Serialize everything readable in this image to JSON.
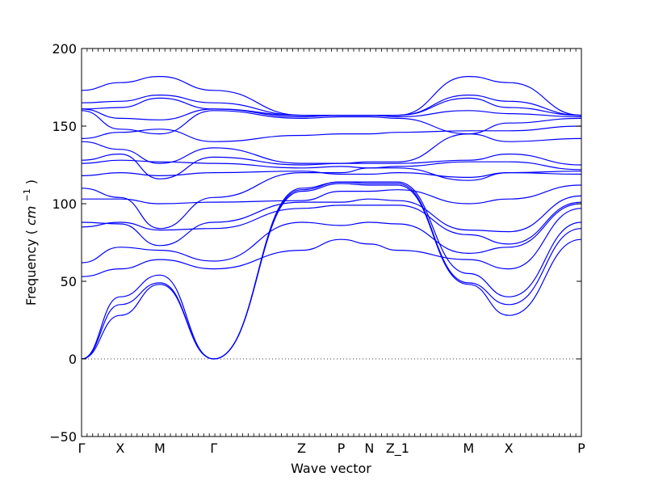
{
  "chart_data": {
    "type": "line",
    "xlabel": "Wave vector",
    "ylabel": "Frequency",
    "ylabel_unit": "cm",
    "ylabel_unit_exponent": "−1",
    "ylim": [
      -50,
      200
    ],
    "yticks": [
      -50,
      0,
      50,
      100,
      150,
      200
    ],
    "xlim": [
      0,
      1
    ],
    "x_ticks": [
      {
        "label": "Γ",
        "x": 0.0
      },
      {
        "label": "X",
        "x": 0.0774
      },
      {
        "label": "M",
        "x": 0.1565
      },
      {
        "label": "Γ",
        "x": 0.2645
      },
      {
        "label": "Z",
        "x": 0.4403
      },
      {
        "label": "P",
        "x": 0.5194
      },
      {
        "label": "N",
        "x": 0.5758
      },
      {
        "label": "Z_1",
        "x": 0.6323
      },
      {
        "label": "M",
        "x": 0.7742
      },
      {
        "label": "X",
        "x": 0.8548
      },
      {
        "label": "P",
        "x": 1.0
      }
    ],
    "zero_line": true,
    "grid": false,
    "series_color": "#0000ff",
    "segment_x": [
      0.0,
      0.0774,
      0.1565,
      0.2645,
      0.4403,
      0.5194,
      0.5758,
      0.6323,
      0.7742,
      0.8548,
      1.0
    ],
    "series": [
      {
        "values": [
          0,
          28,
          48,
          0,
          108,
          113,
          112,
          112,
          48,
          28,
          77
        ]
      },
      {
        "values": [
          0,
          35,
          49,
          0,
          109,
          114,
          113,
          113,
          49,
          35,
          84
        ]
      },
      {
        "values": [
          0,
          40,
          54,
          0,
          110,
          114,
          114,
          114,
          55,
          40,
          88
        ]
      },
      {
        "values": [
          53,
          58,
          64,
          58,
          70,
          77,
          74,
          70,
          64,
          58,
          97
        ]
      },
      {
        "values": [
          62,
          72,
          70,
          63,
          88,
          86,
          88,
          87,
          68,
          72,
          100
        ]
      },
      {
        "values": [
          85,
          88,
          83,
          84,
          97,
          99,
          99,
          99,
          80,
          74,
          101
        ]
      },
      {
        "values": [
          88,
          87,
          73,
          88,
          101,
          101,
          103,
          102,
          83,
          82,
          105
        ]
      },
      {
        "values": [
          103,
          103,
          100,
          101,
          102,
          108,
          108,
          109,
          100,
          103,
          112
        ]
      },
      {
        "values": [
          110,
          104,
          84,
          104,
          120,
          120,
          123,
          123,
          115,
          120,
          119
        ]
      },
      {
        "values": [
          118,
          120,
          118,
          120,
          121,
          119,
          119,
          120,
          117,
          120,
          121
        ]
      },
      {
        "values": [
          126,
          128,
          127,
          126,
          123,
          124,
          123,
          124,
          127,
          127,
          122
        ]
      },
      {
        "values": [
          128,
          132,
          116,
          130,
          125,
          126,
          126,
          126,
          128,
          132,
          125
        ]
      },
      {
        "values": [
          140,
          135,
          126,
          136,
          126,
          126,
          127,
          127,
          145,
          140,
          142
        ]
      },
      {
        "values": [
          142,
          146,
          148,
          140,
          144,
          145,
          145,
          146,
          147,
          147,
          150
        ]
      },
      {
        "values": [
          160,
          148,
          145,
          160,
          155,
          156,
          156,
          155,
          145,
          152,
          155
        ]
      },
      {
        "values": [
          161,
          155,
          154,
          161,
          156,
          157,
          157,
          156,
          160,
          158,
          156
        ]
      },
      {
        "values": [
          161,
          162,
          168,
          161,
          157,
          157,
          157,
          157,
          168,
          162,
          157
        ]
      },
      {
        "values": [
          165,
          166,
          170,
          165,
          157,
          157,
          157,
          157,
          170,
          166,
          157
        ]
      },
      {
        "values": [
          173,
          178,
          182,
          173,
          157,
          157,
          157,
          157,
          182,
          178,
          157
        ]
      }
    ]
  }
}
